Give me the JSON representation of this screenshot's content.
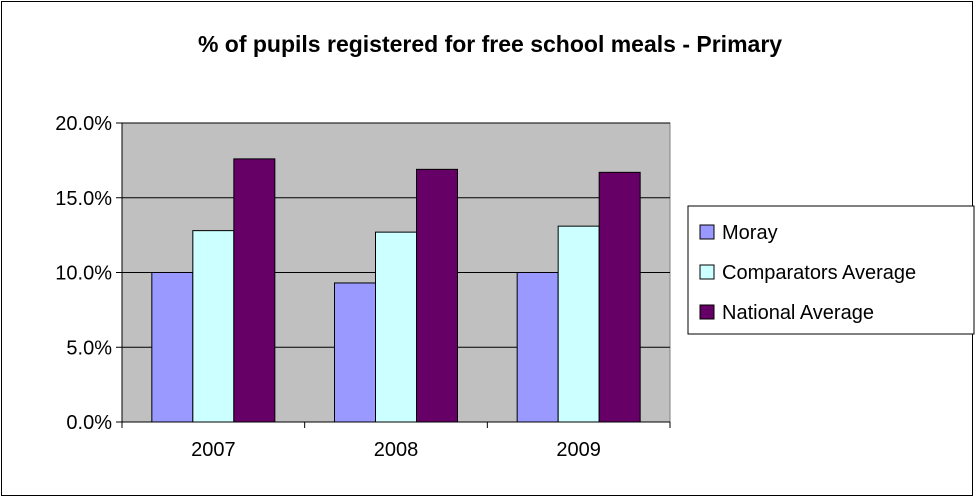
{
  "chart_data": {
    "type": "bar",
    "title": "% of pupils registered for free school meals - Primary",
    "xlabel": "",
    "ylabel": "",
    "categories": [
      "2007",
      "2008",
      "2009"
    ],
    "ylim": [
      0,
      0.2
    ],
    "yticks": [
      0.0,
      0.05,
      0.1,
      0.15,
      0.2
    ],
    "ytick_labels": [
      "0.0%",
      "5.0%",
      "10.0%",
      "15.0%",
      "20.0%"
    ],
    "grid": true,
    "legend_position": "right",
    "series": [
      {
        "name": "Moray",
        "color": "#9999ff",
        "values": [
          0.1,
          0.093,
          0.1
        ]
      },
      {
        "name": "Comparators Average",
        "color": "#ccffff",
        "values": [
          0.128,
          0.127,
          0.131
        ]
      },
      {
        "name": "National Average",
        "color": "#660066",
        "values": [
          0.176,
          0.169,
          0.167
        ]
      }
    ],
    "plot_background": "#c0c0c0"
  }
}
